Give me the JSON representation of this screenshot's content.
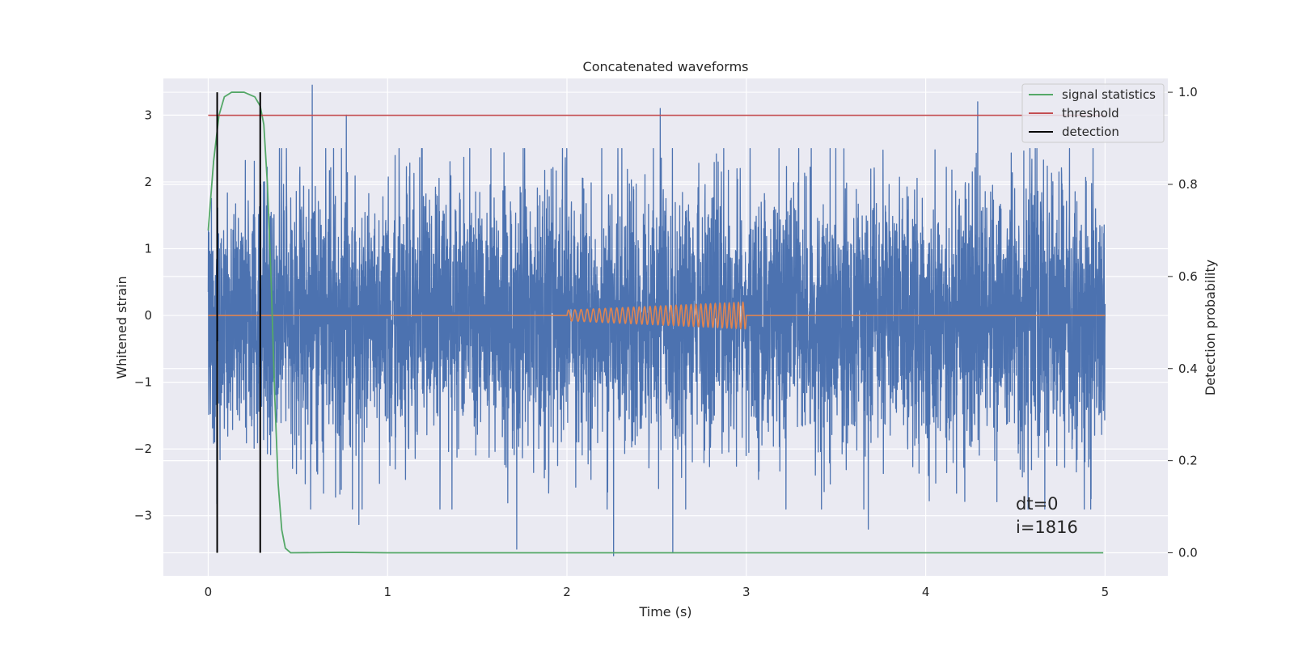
{
  "chart_data": {
    "type": "line",
    "title": "Concatenated waveforms",
    "xlabel": "Time (s)",
    "ylabel": "Whitened strain",
    "ylabel_right": "Detection probability",
    "xlim": [
      -0.25,
      5.35
    ],
    "ylim": [
      -3.9,
      3.55
    ],
    "ylim_right": [
      -0.05,
      1.03
    ],
    "xticks": [
      0,
      1,
      2,
      3,
      4,
      5
    ],
    "xtick_labels": [
      "0",
      "1",
      "2",
      "3",
      "4",
      "5"
    ],
    "yticks": [
      -3,
      -2,
      -1,
      0,
      1,
      2,
      3
    ],
    "ytick_labels": [
      "−3",
      "−2",
      "−1",
      "0",
      "1",
      "2",
      "3"
    ],
    "yticks_right": [
      0.0,
      0.2,
      0.4,
      0.6,
      0.8,
      1.0
    ],
    "ytick_right_labels": [
      "0.0",
      "0.2",
      "0.4",
      "0.6",
      "0.8",
      "1.0"
    ],
    "grid": true,
    "legend_position": "upper-right",
    "legend": [
      "signal statistics",
      "threshold",
      "detection"
    ],
    "annotations": [
      "dt=0",
      "i=1816"
    ],
    "series": [
      {
        "name": "",
        "axis": "left",
        "color": "#4c72b0",
        "description": "whitened noise, 0 to 5 s, roughly ±2.5 with spikes",
        "noise_range": [
          0,
          5
        ],
        "typical_amplitude": 1.0,
        "spikes": [
          [
            0.58,
            3.45
          ],
          [
            0.77,
            3.0
          ],
          [
            2.52,
            3.1
          ],
          [
            4.29,
            3.2
          ],
          [
            2.26,
            -3.6
          ],
          [
            2.59,
            -3.55
          ],
          [
            1.72,
            -3.5
          ],
          [
            0.84,
            -3.13
          ],
          [
            3.68,
            -3.2
          ]
        ]
      },
      {
        "name": "",
        "axis": "left",
        "color": "#dd8452",
        "description": "injected chirp, zero outside 2 to 3 s",
        "x_range": [
          0,
          5
        ],
        "chirp_range": [
          2.0,
          3.0
        ],
        "amplitude_start": 0.08,
        "amplitude_end": 0.2
      },
      {
        "name": "signal statistics",
        "axis": "right",
        "color": "#55a868",
        "points": [
          [
            0.0,
            0.7
          ],
          [
            0.03,
            0.85
          ],
          [
            0.06,
            0.95
          ],
          [
            0.09,
            0.99
          ],
          [
            0.13,
            1.0
          ],
          [
            0.2,
            1.0
          ],
          [
            0.26,
            0.99
          ],
          [
            0.29,
            0.97
          ],
          [
            0.31,
            0.93
          ],
          [
            0.33,
            0.8
          ],
          [
            0.35,
            0.6
          ],
          [
            0.37,
            0.35
          ],
          [
            0.39,
            0.15
          ],
          [
            0.41,
            0.05
          ],
          [
            0.43,
            0.01
          ],
          [
            0.46,
            0.0
          ],
          [
            0.75,
            0.001
          ],
          [
            1.0,
            0.0
          ],
          [
            4.99,
            0.0
          ]
        ]
      },
      {
        "name": "threshold",
        "axis": "right",
        "color": "#c44e52",
        "x": [
          0,
          5
        ],
        "value": 0.95
      },
      {
        "name": "detection",
        "axis": "right",
        "color": "#000000",
        "x": [
          0.05,
          0.29
        ],
        "y_range": [
          0.0,
          1.0
        ]
      }
    ]
  }
}
